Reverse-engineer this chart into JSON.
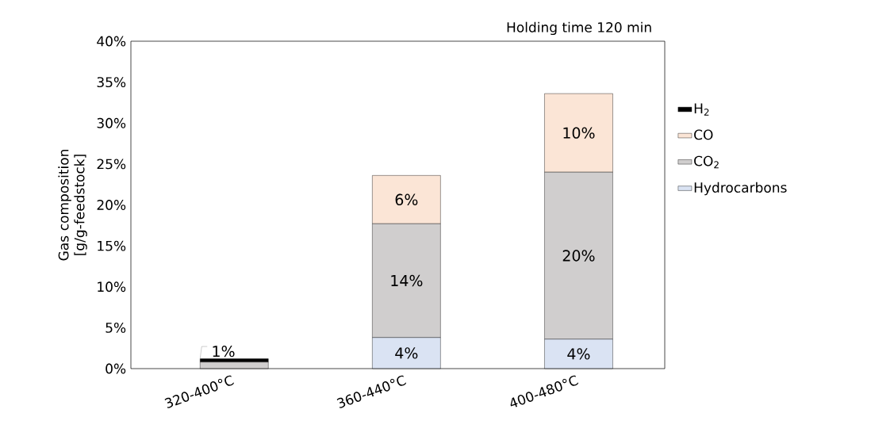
{
  "chart_data": {
    "type": "bar",
    "stacked": true,
    "title": "Holding time 120 min",
    "ylabel": "Gas composition [g/g-feedstock]",
    "categories": [
      "320-400°C",
      "360-440°C",
      "400-480°C"
    ],
    "series": [
      {
        "name": "Hydrocarbons",
        "color": "#dae3f3",
        "values": [
          0,
          3.8,
          3.6
        ],
        "value_labels": [
          null,
          "4%",
          "4%"
        ]
      },
      {
        "name": "CO$_{2}$",
        "color": "#d0cece",
        "values": [
          0.8,
          13.9,
          20.4
        ],
        "value_labels": [
          "1%",
          "14%",
          "20%"
        ]
      },
      {
        "name": "CO",
        "color": "#fbe5d6",
        "values": [
          0,
          5.9,
          9.6
        ],
        "value_labels": [
          null,
          "6%",
          "10%"
        ]
      },
      {
        "name": "H$_{2}$",
        "color": "#000000",
        "values": [
          0.4,
          0,
          0
        ]
      }
    ],
    "ylim": [
      0,
      40
    ],
    "yticks": [
      {
        "value": 0,
        "label": "0%"
      },
      {
        "value": 5,
        "label": "5%"
      },
      {
        "value": 10,
        "label": "10%"
      },
      {
        "value": 15,
        "label": "15%"
      },
      {
        "value": 20,
        "label": "20%"
      },
      {
        "value": 25,
        "label": "25%"
      },
      {
        "value": 30,
        "label": "30%"
      },
      {
        "value": 35,
        "label": "35%"
      },
      {
        "value": 40,
        "label": "40%"
      }
    ],
    "grid": false,
    "legend": "right"
  }
}
